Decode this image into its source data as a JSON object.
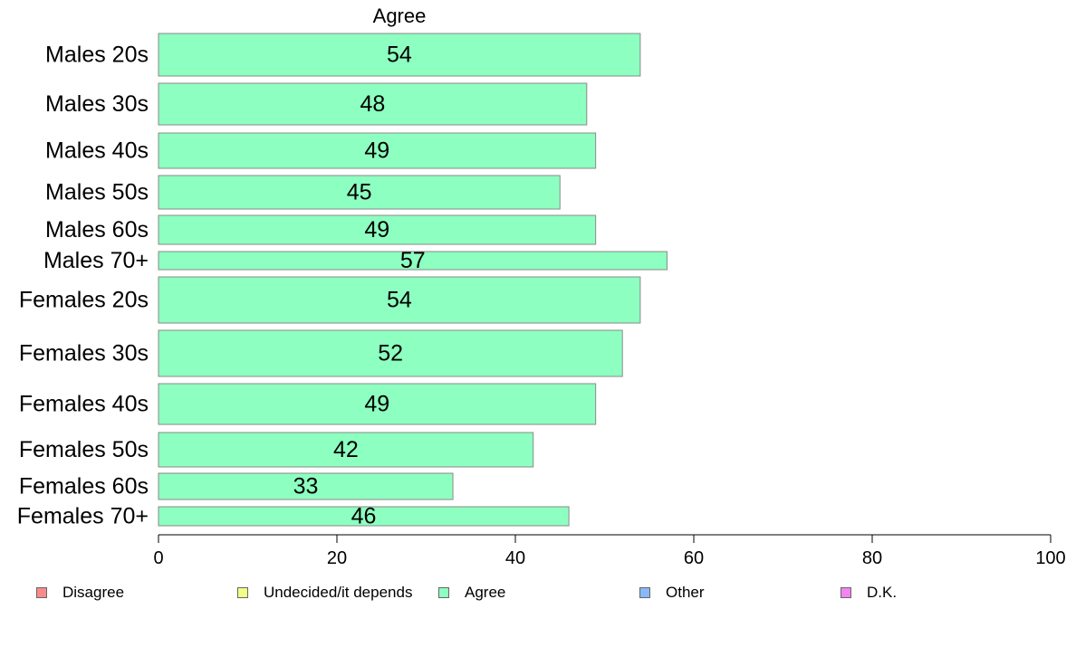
{
  "chart_data": {
    "type": "bar",
    "orientation": "horizontal",
    "title": "Agree",
    "categories": [
      "Males 20s",
      "Males 30s",
      "Males 40s",
      "Males 50s",
      "Males 60s",
      "Males 70+",
      "Females 20s",
      "Females 30s",
      "Females 40s",
      "Females 50s",
      "Females 60s",
      "Females 70+"
    ],
    "series": [
      {
        "name": "Agree",
        "values": [
          54,
          48,
          49,
          45,
          49,
          57,
          54,
          52,
          49,
          42,
          33,
          46
        ],
        "color": "#8dffc0"
      }
    ],
    "xlim": [
      0,
      100
    ],
    "xticks": [
      0,
      20,
      40,
      60,
      80,
      100
    ],
    "xlabel": "",
    "ylabel": "",
    "grid": false,
    "legend_placement": "bottom",
    "legend": [
      {
        "label": "Disagree",
        "color": "#f98b8b"
      },
      {
        "label": "Undecided/it depends",
        "color": "#f1ff88"
      },
      {
        "label": "Agree",
        "color": "#8dffc0"
      },
      {
        "label": "Other",
        "color": "#88b9f9"
      },
      {
        "label": "D.K.",
        "color": "#f285f0"
      }
    ]
  }
}
